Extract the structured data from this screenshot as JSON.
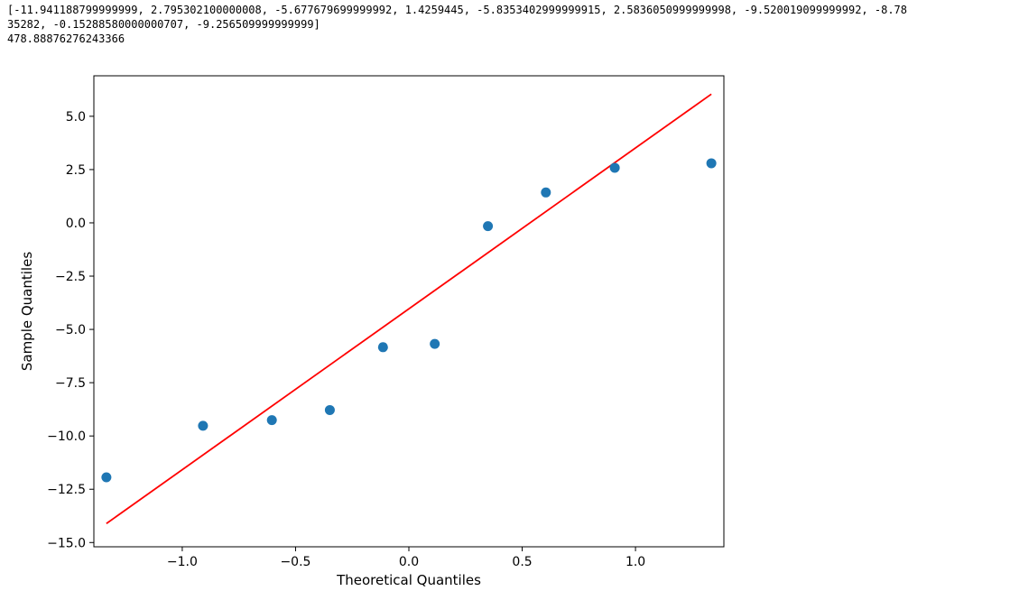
{
  "console": {
    "lines": [
      "[-11.941188799999999, 2.795302100000008, -5.677679699999992, 1.4259445, -5.8353402999999915, 2.5836050999999998, -9.520019099999992, -8.78",
      "35282, -0.15288580000000707, -9.256509999999999]",
      "478.88876276243366"
    ]
  },
  "chart_data": {
    "type": "scatter",
    "xlabel": "Theoretical Quantiles",
    "ylabel": "Sample Quantiles",
    "xlim": [
      -1.39,
      1.39
    ],
    "ylim": [
      -15.2,
      6.9
    ],
    "xticks": [
      -1.0,
      -0.5,
      0.0,
      0.5,
      1.0
    ],
    "xtick_labels": [
      "−1.0",
      "−0.5",
      "0.0",
      "0.5",
      "1.0"
    ],
    "yticks": [
      -15.0,
      -12.5,
      -10.0,
      -7.5,
      -5.0,
      -2.5,
      0.0,
      2.5,
      5.0
    ],
    "ytick_labels": [
      "−15.0",
      "−12.5",
      "−10.0",
      "−7.5",
      "−5.0",
      "−2.5",
      "0.0",
      "2.5",
      "5.0"
    ],
    "grid": false,
    "series": [
      {
        "kind": "points",
        "x": [
          -1.3347,
          -0.9085,
          -0.6046,
          -0.3488,
          -0.1142,
          0.1142,
          0.3488,
          0.6046,
          0.9085,
          1.3347
        ],
        "y": [
          -11.9412,
          -9.52,
          -9.2565,
          -8.7835,
          -5.8353,
          -5.6777,
          -0.1529,
          1.4259,
          2.5836,
          2.7953
        ],
        "color": "#1f77b4"
      },
      {
        "kind": "line",
        "x": [
          -1.3347,
          1.3347
        ],
        "y": [
          -14.11,
          6.04
        ],
        "color": "#ff0000"
      }
    ]
  }
}
